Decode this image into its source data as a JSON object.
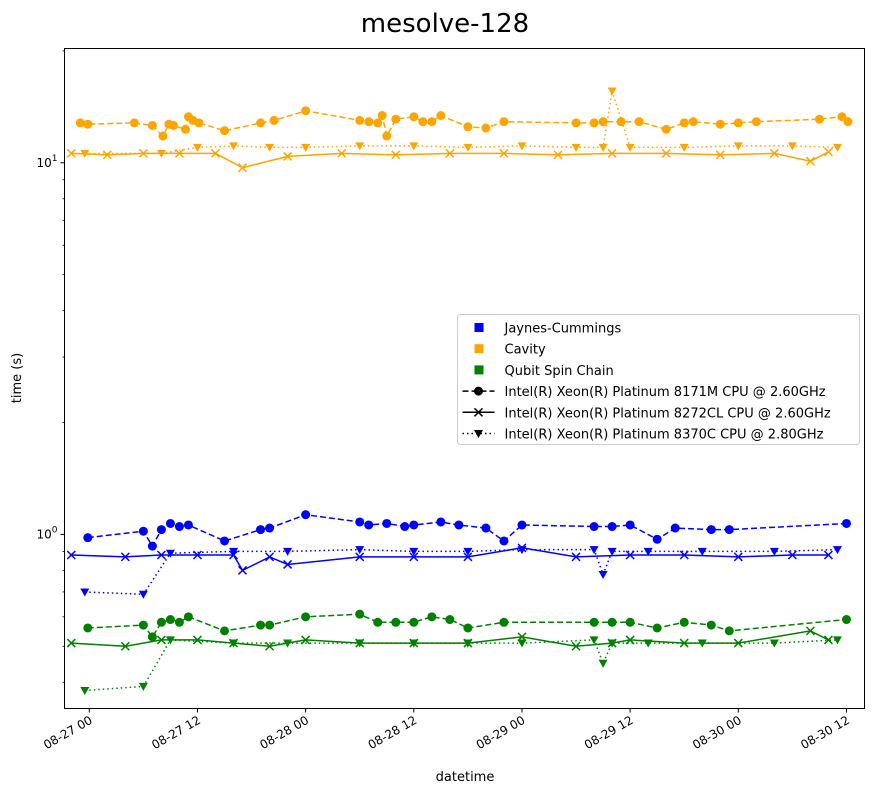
{
  "chart_data": {
    "type": "line",
    "title": "mesolve-128",
    "xlabel": "datetime",
    "ylabel": "time (s)",
    "yscale": "log",
    "ylim": [
      0.34,
      20.3
    ],
    "xlim": [
      "2023-08-26T21:15",
      "2023-08-30T14:00"
    ],
    "x_tick_labels": [
      "08-27 00",
      "08-27 12",
      "08-28 00",
      "08-28 12",
      "08-29 00",
      "08-29 12",
      "08-30 00",
      "08-30 12"
    ],
    "x_tick_values": [
      "2023-08-27T00:00",
      "2023-08-27T12:00",
      "2023-08-28T00:00",
      "2023-08-28T12:00",
      "2023-08-29T00:00",
      "2023-08-29T12:00",
      "2023-08-30T00:00",
      "2023-08-30T12:00"
    ],
    "y_tick_labels": [
      "10^0",
      "10^1"
    ],
    "y_tick_values": [
      1,
      10
    ],
    "grid": false,
    "legend_position": "center-right",
    "benchmarks": [
      {
        "name": "Jaynes-Cummings",
        "color": "#0000ff"
      },
      {
        "name": "Cavity",
        "color": "#ffa500"
      },
      {
        "name": "Qubit Spin Chain",
        "color": "#008000"
      }
    ],
    "cpus": [
      {
        "name": "Intel(R) Xeon(R) Platinum 8171M CPU @ 2.60GHz",
        "linestyle": "dashed",
        "marker": "circle"
      },
      {
        "name": "Intel(R) Xeon(R) Platinum 8272CL CPU @ 2.60GHz",
        "linestyle": "solid",
        "marker": "x"
      },
      {
        "name": "Intel(R) Xeon(R) Platinum 8370C CPU @ 2.80GHz",
        "linestyle": "dotted",
        "marker": "triangle-down"
      }
    ],
    "series": [
      {
        "benchmark": "Cavity",
        "cpu": "Intel(R) Xeon(R) Platinum 8171M CPU @ 2.60GHz",
        "color": "#ffa500",
        "linestyle": "dashed",
        "marker": "circle",
        "x": [
          "2023-08-26T23:00",
          "2023-08-26T23:50",
          "2023-08-27T05:00",
          "2023-08-27T07:00",
          "2023-08-27T08:10",
          "2023-08-27T08:50",
          "2023-08-27T09:20",
          "2023-08-27T10:40",
          "2023-08-27T11:00",
          "2023-08-27T11:30",
          "2023-08-27T12:10",
          "2023-08-27T15:00",
          "2023-08-27T19:00",
          "2023-08-27T20:30",
          "2023-08-28T00:00",
          "2023-08-28T06:00",
          "2023-08-28T07:00",
          "2023-08-28T08:00",
          "2023-08-28T08:30",
          "2023-08-28T09:00",
          "2023-08-28T10:00",
          "2023-08-28T12:00",
          "2023-08-28T13:00",
          "2023-08-28T14:00",
          "2023-08-28T15:00",
          "2023-08-28T18:00",
          "2023-08-28T20:00",
          "2023-08-28T22:00",
          "2023-08-29T06:00",
          "2023-08-29T08:00",
          "2023-08-29T09:00",
          "2023-08-29T11:00",
          "2023-08-29T13:00",
          "2023-08-29T16:00",
          "2023-08-29T18:00",
          "2023-08-29T19:00",
          "2023-08-29T22:00",
          "2023-08-30T00:00",
          "2023-08-30T02:00",
          "2023-08-30T09:00",
          "2023-08-30T11:30",
          "2023-08-30T12:10"
        ],
        "y": [
          12.8,
          12.7,
          12.8,
          12.6,
          11.8,
          12.7,
          12.6,
          12.3,
          13.3,
          13.0,
          12.8,
          12.2,
          12.8,
          13.0,
          13.8,
          13.0,
          12.9,
          12.8,
          13.4,
          11.8,
          13.1,
          13.3,
          12.9,
          12.9,
          13.4,
          12.5,
          12.4,
          12.9,
          12.8,
          12.8,
          12.9,
          12.9,
          12.9,
          12.3,
          12.8,
          12.9,
          12.7,
          12.8,
          12.9,
          13.1,
          13.3,
          12.9
        ]
      },
      {
        "benchmark": "Cavity",
        "cpu": "Intel(R) Xeon(R) Platinum 8272CL CPU @ 2.60GHz",
        "color": "#ffa500",
        "linestyle": "solid",
        "marker": "x",
        "x": [
          "2023-08-26T22:00",
          "2023-08-27T02:00",
          "2023-08-27T06:00",
          "2023-08-27T10:00",
          "2023-08-27T14:00",
          "2023-08-27T17:00",
          "2023-08-27T22:00",
          "2023-08-28T04:00",
          "2023-08-28T10:00",
          "2023-08-28T16:00",
          "2023-08-28T22:00",
          "2023-08-29T04:00",
          "2023-08-29T10:00",
          "2023-08-29T16:00",
          "2023-08-29T22:00",
          "2023-08-30T04:00",
          "2023-08-30T08:00",
          "2023-08-30T10:00"
        ],
        "y": [
          10.6,
          10.5,
          10.6,
          10.6,
          10.6,
          9.7,
          10.4,
          10.6,
          10.5,
          10.6,
          10.6,
          10.5,
          10.6,
          10.6,
          10.5,
          10.6,
          10.1,
          10.7
        ]
      },
      {
        "benchmark": "Cavity",
        "cpu": "Intel(R) Xeon(R) Platinum 8370C CPU @ 2.80GHz",
        "color": "#ffa500",
        "linestyle": "dotted",
        "marker": "triangle-down",
        "x": [
          "2023-08-26T23:30",
          "2023-08-27T08:00",
          "2023-08-27T12:00",
          "2023-08-27T16:00",
          "2023-08-27T20:00",
          "2023-08-28T00:00",
          "2023-08-28T06:00",
          "2023-08-28T12:00",
          "2023-08-28T18:00",
          "2023-08-29T00:00",
          "2023-08-29T06:00",
          "2023-08-29T09:00",
          "2023-08-29T10:00",
          "2023-08-29T12:00",
          "2023-08-29T18:00",
          "2023-08-30T00:00",
          "2023-08-30T06:00",
          "2023-08-30T11:00"
        ],
        "y": [
          10.6,
          10.6,
          11.0,
          11.1,
          11.0,
          11.0,
          11.1,
          11.1,
          11.0,
          11.1,
          11.0,
          11.0,
          15.6,
          11.0,
          11.0,
          11.1,
          11.1,
          11.0
        ]
      },
      {
        "benchmark": "Jaynes-Cummings",
        "cpu": "Intel(R) Xeon(R) Platinum 8171M CPU @ 2.60GHz",
        "color": "#0000ff",
        "linestyle": "dashed",
        "marker": "circle",
        "x": [
          "2023-08-26T23:50",
          "2023-08-27T06:00",
          "2023-08-27T07:00",
          "2023-08-27T08:00",
          "2023-08-27T09:00",
          "2023-08-27T10:00",
          "2023-08-27T11:00",
          "2023-08-27T15:00",
          "2023-08-27T19:00",
          "2023-08-27T20:00",
          "2023-08-28T00:00",
          "2023-08-28T06:00",
          "2023-08-28T07:00",
          "2023-08-28T09:00",
          "2023-08-28T11:00",
          "2023-08-28T12:00",
          "2023-08-28T15:00",
          "2023-08-28T17:00",
          "2023-08-28T20:00",
          "2023-08-28T22:00",
          "2023-08-29T00:00",
          "2023-08-29T08:00",
          "2023-08-29T10:00",
          "2023-08-29T12:00",
          "2023-08-29T15:00",
          "2023-08-29T17:00",
          "2023-08-29T21:00",
          "2023-08-29T23:00",
          "2023-08-30T12:00"
        ],
        "y": [
          0.98,
          1.02,
          0.93,
          1.03,
          1.07,
          1.05,
          1.06,
          0.96,
          1.03,
          1.04,
          1.13,
          1.08,
          1.06,
          1.07,
          1.05,
          1.06,
          1.08,
          1.06,
          1.04,
          0.96,
          1.06,
          1.05,
          1.05,
          1.06,
          0.97,
          1.04,
          1.03,
          1.03,
          1.07
        ]
      },
      {
        "benchmark": "Jaynes-Cummings",
        "cpu": "Intel(R) Xeon(R) Platinum 8272CL CPU @ 2.60GHz",
        "color": "#0000ff",
        "linestyle": "solid",
        "marker": "x",
        "x": [
          "2023-08-26T22:00",
          "2023-08-27T04:00",
          "2023-08-27T08:00",
          "2023-08-27T12:00",
          "2023-08-27T16:00",
          "2023-08-27T17:00",
          "2023-08-27T20:00",
          "2023-08-27T22:00",
          "2023-08-28T06:00",
          "2023-08-28T12:00",
          "2023-08-28T18:00",
          "2023-08-29T00:00",
          "2023-08-29T06:00",
          "2023-08-29T12:00",
          "2023-08-29T18:00",
          "2023-08-30T00:00",
          "2023-08-30T06:00",
          "2023-08-30T10:00"
        ],
        "y": [
          0.88,
          0.87,
          0.88,
          0.88,
          0.88,
          0.8,
          0.87,
          0.83,
          0.87,
          0.87,
          0.87,
          0.92,
          0.87,
          0.88,
          0.88,
          0.87,
          0.88,
          0.88
        ]
      },
      {
        "benchmark": "Jaynes-Cummings",
        "cpu": "Intel(R) Xeon(R) Platinum 8370C CPU @ 2.80GHz",
        "color": "#0000ff",
        "linestyle": "dotted",
        "marker": "triangle-down",
        "x": [
          "2023-08-26T23:30",
          "2023-08-27T06:00",
          "2023-08-27T09:00",
          "2023-08-27T16:00",
          "2023-08-27T22:00",
          "2023-08-28T06:00",
          "2023-08-28T12:00",
          "2023-08-28T18:00",
          "2023-08-29T00:00",
          "2023-08-29T08:00",
          "2023-08-29T09:00",
          "2023-08-29T10:00",
          "2023-08-29T14:00",
          "2023-08-29T20:00",
          "2023-08-30T04:00",
          "2023-08-30T11:00"
        ],
        "y": [
          0.7,
          0.69,
          0.89,
          0.9,
          0.9,
          0.91,
          0.9,
          0.9,
          0.91,
          0.91,
          0.78,
          0.9,
          0.9,
          0.9,
          0.9,
          0.91
        ]
      },
      {
        "benchmark": "Qubit Spin Chain",
        "cpu": "Intel(R) Xeon(R) Platinum 8171M CPU @ 2.60GHz",
        "color": "#008000",
        "linestyle": "dashed",
        "marker": "circle",
        "x": [
          "2023-08-26T23:50",
          "2023-08-27T06:00",
          "2023-08-27T07:00",
          "2023-08-27T08:00",
          "2023-08-27T09:00",
          "2023-08-27T10:00",
          "2023-08-27T11:00",
          "2023-08-27T15:00",
          "2023-08-27T19:00",
          "2023-08-27T20:00",
          "2023-08-28T00:00",
          "2023-08-28T06:00",
          "2023-08-28T08:00",
          "2023-08-28T10:00",
          "2023-08-28T12:00",
          "2023-08-28T14:00",
          "2023-08-28T16:00",
          "2023-08-28T18:00",
          "2023-08-28T22:00",
          "2023-08-29T08:00",
          "2023-08-29T10:00",
          "2023-08-29T12:00",
          "2023-08-29T15:00",
          "2023-08-29T18:00",
          "2023-08-29T21:00",
          "2023-08-29T23:00",
          "2023-08-30T12:00"
        ],
        "y": [
          0.56,
          0.57,
          0.53,
          0.58,
          0.59,
          0.58,
          0.6,
          0.55,
          0.57,
          0.57,
          0.6,
          0.61,
          0.58,
          0.58,
          0.58,
          0.6,
          0.59,
          0.56,
          0.58,
          0.58,
          0.58,
          0.58,
          0.56,
          0.58,
          0.57,
          0.55,
          0.59
        ]
      },
      {
        "benchmark": "Qubit Spin Chain",
        "cpu": "Intel(R) Xeon(R) Platinum 8272CL CPU @ 2.60GHz",
        "color": "#008000",
        "linestyle": "solid",
        "marker": "x",
        "x": [
          "2023-08-26T22:00",
          "2023-08-27T04:00",
          "2023-08-27T08:00",
          "2023-08-27T12:00",
          "2023-08-27T16:00",
          "2023-08-27T20:00",
          "2023-08-28T00:00",
          "2023-08-28T06:00",
          "2023-08-28T12:00",
          "2023-08-28T18:00",
          "2023-08-29T00:00",
          "2023-08-29T06:00",
          "2023-08-29T10:00",
          "2023-08-29T12:00",
          "2023-08-29T18:00",
          "2023-08-30T00:00",
          "2023-08-30T08:00",
          "2023-08-30T10:00"
        ],
        "y": [
          0.51,
          0.5,
          0.52,
          0.52,
          0.51,
          0.5,
          0.52,
          0.51,
          0.51,
          0.51,
          0.53,
          0.5,
          0.51,
          0.52,
          0.51,
          0.51,
          0.55,
          0.52
        ]
      },
      {
        "benchmark": "Qubit Spin Chain",
        "cpu": "Intel(R) Xeon(R) Platinum 8370C CPU @ 2.80GHz",
        "color": "#008000",
        "linestyle": "dotted",
        "marker": "triangle-down",
        "x": [
          "2023-08-26T23:30",
          "2023-08-27T06:00",
          "2023-08-27T09:00",
          "2023-08-27T16:00",
          "2023-08-27T22:00",
          "2023-08-28T06:00",
          "2023-08-28T12:00",
          "2023-08-28T18:00",
          "2023-08-29T00:00",
          "2023-08-29T08:00",
          "2023-08-29T09:00",
          "2023-08-29T10:00",
          "2023-08-29T14:00",
          "2023-08-29T20:00",
          "2023-08-30T04:00",
          "2023-08-30T11:00"
        ],
        "y": [
          0.38,
          0.39,
          0.52,
          0.51,
          0.51,
          0.51,
          0.51,
          0.51,
          0.51,
          0.52,
          0.45,
          0.51,
          0.51,
          0.51,
          0.51,
          0.52
        ]
      }
    ]
  }
}
